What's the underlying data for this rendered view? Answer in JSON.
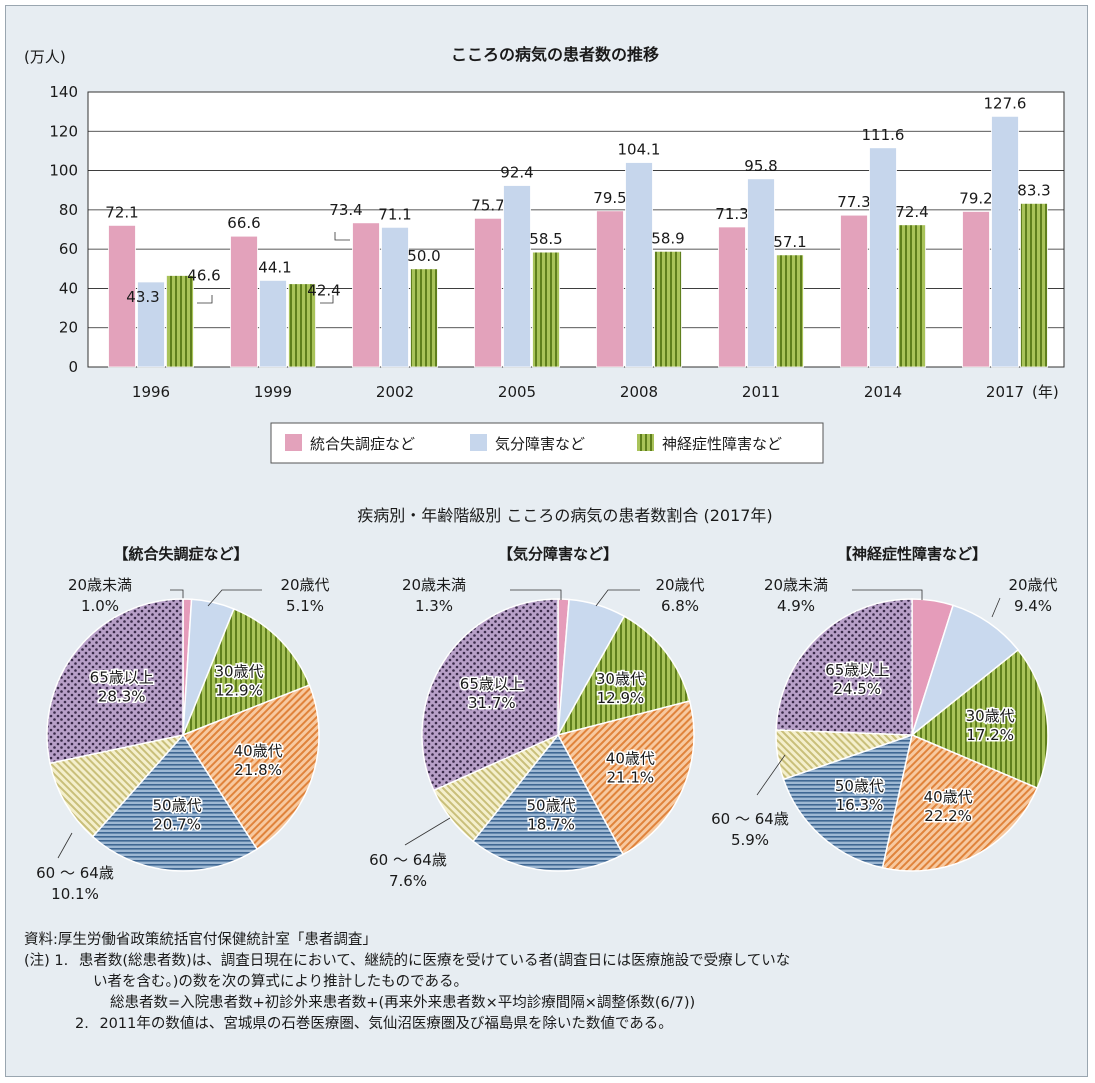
{
  "chart_data": [
    {
      "type": "bar",
      "title": "こころの病気の患者数の推移",
      "ylabel": "(万人)",
      "xunit": "(年)",
      "ylim": [
        0,
        140
      ],
      "yticks": [
        0,
        20,
        40,
        60,
        80,
        100,
        120,
        140
      ],
      "grid": true,
      "categories": [
        "1996",
        "1999",
        "2002",
        "2005",
        "2008",
        "2011",
        "2014",
        "2017"
      ],
      "series": [
        {
          "name": "統合失調症など",
          "color": "#e3a2bb",
          "values": [
            72.1,
            66.6,
            73.4,
            75.7,
            79.5,
            71.3,
            77.3,
            79.2
          ]
        },
        {
          "name": "気分障害など",
          "color": "#c6d6ec",
          "values": [
            43.3,
            44.1,
            71.1,
            92.4,
            104.1,
            95.8,
            111.6,
            127.6
          ]
        },
        {
          "name": "神経症性障害など",
          "color": "#86a335",
          "values": [
            46.6,
            42.4,
            50.0,
            58.5,
            58.9,
            57.1,
            72.4,
            83.3
          ]
        }
      ],
      "legend": "bottom"
    },
    {
      "type": "pie",
      "title": "疾病別・年齢階級別 こころの病気の患者数割合 (2017年)",
      "pies": [
        {
          "name": "【統合失調症など】",
          "slices": [
            {
              "label": "20歳未満",
              "value": 1.0,
              "display": "1.0%"
            },
            {
              "label": "20歳代",
              "value": 5.1,
              "display": "5.1%"
            },
            {
              "label": "30歳代",
              "value": 12.9,
              "display": "12.9%"
            },
            {
              "label": "40歳代",
              "value": 21.8,
              "display": "21.8%"
            },
            {
              "label": "50歳代",
              "value": 20.7,
              "display": "20.7%"
            },
            {
              "label": "60 〜 64歳",
              "value": 10.1,
              "display": "10.1%"
            },
            {
              "label": "65歳以上",
              "value": 28.3,
              "display": "28.3%"
            }
          ]
        },
        {
          "name": "【気分障害など】",
          "slices": [
            {
              "label": "20歳未満",
              "value": 1.3,
              "display": "1.3%"
            },
            {
              "label": "20歳代",
              "value": 6.8,
              "display": "6.8%"
            },
            {
              "label": "30歳代",
              "value": 12.9,
              "display": "12.9%"
            },
            {
              "label": "40歳代",
              "value": 21.1,
              "display": "21.1%"
            },
            {
              "label": "50歳代",
              "value": 18.7,
              "display": "18.7%"
            },
            {
              "label": "60 〜 64歳",
              "value": 7.6,
              "display": "7.6%"
            },
            {
              "label": "65歳以上",
              "value": 31.7,
              "display": "31.7%"
            }
          ]
        },
        {
          "name": "【神経症性障害など】",
          "slices": [
            {
              "label": "20歳未満",
              "value": 4.9,
              "display": "4.9%"
            },
            {
              "label": "20歳代",
              "value": 9.4,
              "display": "9.4%"
            },
            {
              "label": "30歳代",
              "value": 17.2,
              "display": "17.2%"
            },
            {
              "label": "40歳代",
              "value": 22.2,
              "display": "22.2%"
            },
            {
              "label": "50歳代",
              "value": 16.3,
              "display": "16.3%"
            },
            {
              "label": "60 〜 64歳",
              "value": 5.9,
              "display": "5.9%"
            },
            {
              "label": "65歳以上",
              "value": 24.5,
              "display": "24.5%"
            }
          ]
        }
      ]
    }
  ],
  "notes": {
    "source": "資料:厚生労働省政策統括官付保健統計室「患者調査」",
    "note1_prefix": "(注) 1.",
    "note1_line1": "患者数(総患者数)は、調査日現在において、継続的に医療を受けている者(調査日には医療施設で受療していな",
    "note1_line2": "い者を含む。)の数を次の算式により推計したものである。",
    "note1_formula": "総患者数=入院患者数+初診外来患者数+(再来外来患者数×平均診療間隔×調整係数(6/7))",
    "note2_prefix": "2.",
    "note2": "2011年の数値は、宮城県の石巻医療圏、気仙沼医療圏及び福島県を除いた数値である。"
  }
}
